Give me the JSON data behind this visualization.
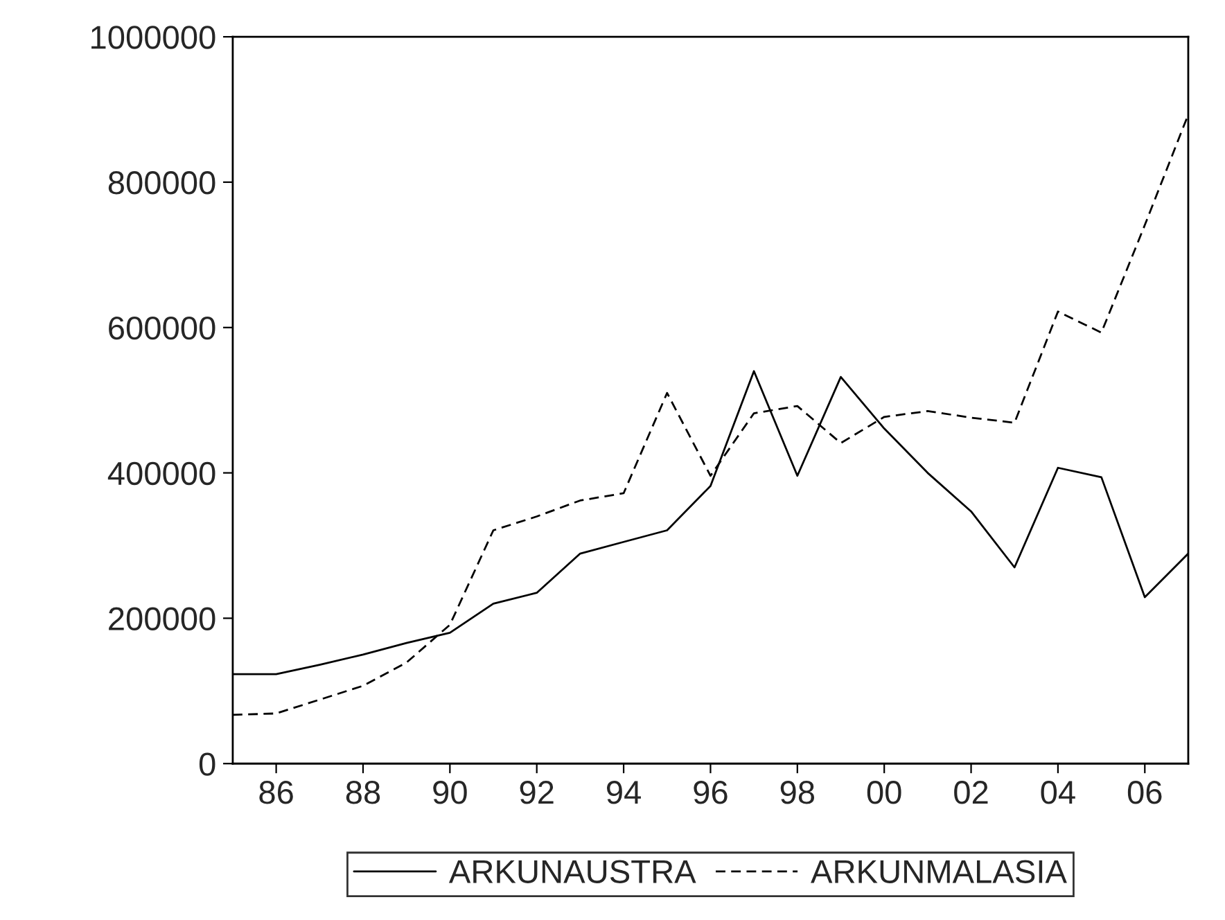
{
  "chart_data": {
    "type": "line",
    "x": [
      1985,
      1986,
      1987,
      1988,
      1989,
      1990,
      1991,
      1992,
      1993,
      1994,
      1995,
      1996,
      1997,
      1998,
      1999,
      2000,
      2001,
      2002,
      2003,
      2004,
      2005,
      2006,
      2007
    ],
    "series": [
      {
        "name": "ARKUNAUSTRA",
        "color": "#000000",
        "line_style": "solid",
        "values": [
          123000,
          123000,
          136000,
          150000,
          166000,
          180000,
          220000,
          235000,
          289000,
          305000,
          321000,
          382000,
          540000,
          396000,
          532000,
          461000,
          400000,
          347000,
          270000,
          407000,
          394000,
          229000,
          289000
        ]
      },
      {
        "name": "ARKUNMALASIA",
        "color": "#000000",
        "line_style": "dashed",
        "values": [
          67000,
          69000,
          88000,
          107000,
          139000,
          191000,
          321000,
          340000,
          362000,
          372000,
          510000,
          396000,
          482000,
          492000,
          441000,
          477000,
          485000,
          476000,
          469000,
          622000,
          593000,
          741000,
          893000
        ]
      }
    ],
    "xlim": [
      1985,
      2007
    ],
    "xticks": [
      {
        "value": 1986,
        "label": "86"
      },
      {
        "value": 1988,
        "label": "88"
      },
      {
        "value": 1990,
        "label": "90"
      },
      {
        "value": 1992,
        "label": "92"
      },
      {
        "value": 1994,
        "label": "94"
      },
      {
        "value": 1996,
        "label": "96"
      },
      {
        "value": 1998,
        "label": "98"
      },
      {
        "value": 2000,
        "label": "00"
      },
      {
        "value": 2002,
        "label": "02"
      },
      {
        "value": 2004,
        "label": "04"
      },
      {
        "value": 2006,
        "label": "06"
      }
    ],
    "ylim": [
      0,
      1000000
    ],
    "yticks": [
      0,
      200000,
      400000,
      600000,
      800000,
      1000000
    ],
    "grid": false,
    "legend": "bottom",
    "marker": "none"
  }
}
